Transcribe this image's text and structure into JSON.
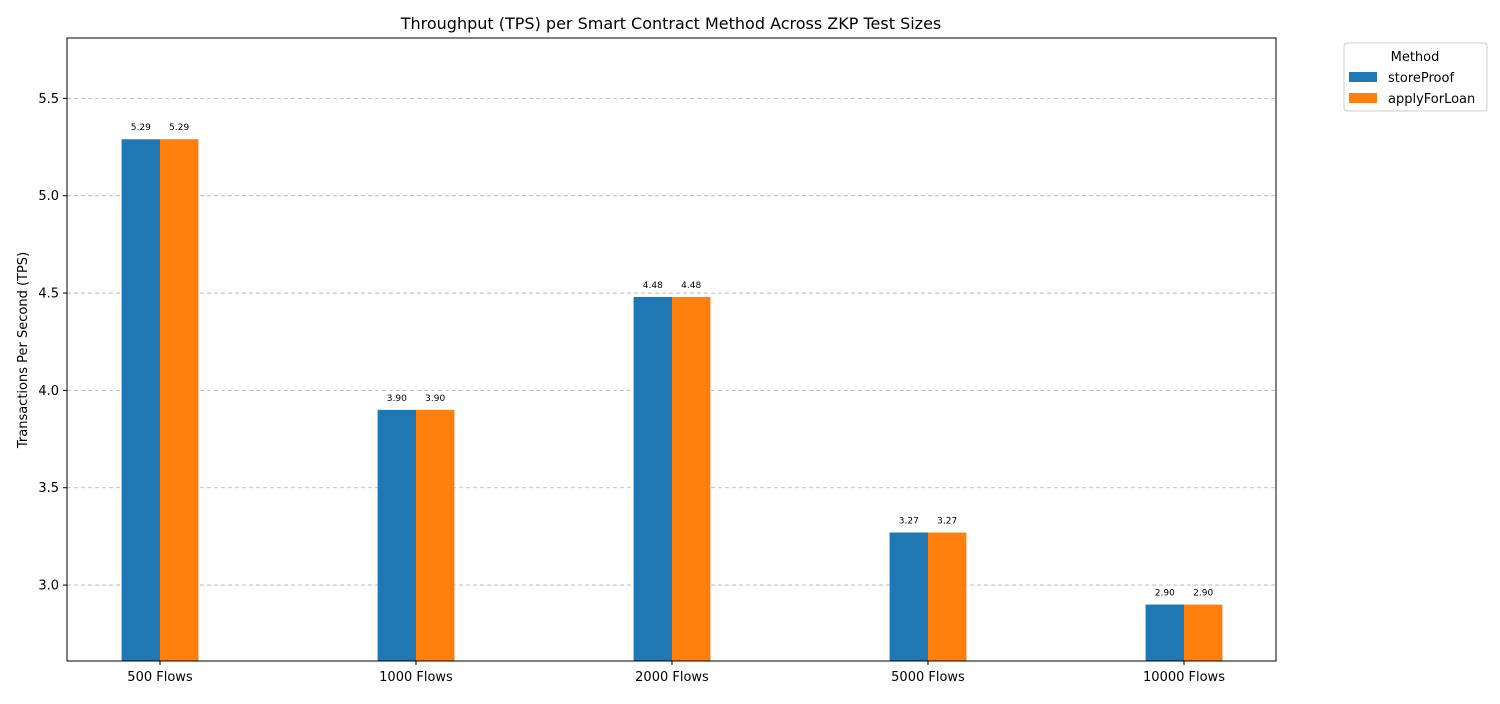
{
  "chart_data": {
    "type": "bar",
    "title": "Throughput (TPS) per Smart Contract Method Across ZKP Test Sizes",
    "xlabel": "",
    "ylabel": "Transactions Per Second (TPS)",
    "categories": [
      "500 Flows",
      "1000 Flows",
      "2000 Flows",
      "5000 Flows",
      "10000 Flows"
    ],
    "series": [
      {
        "name": "storeProof",
        "color": "#1f77b4",
        "values": [
          5.29,
          3.9,
          4.48,
          3.27,
          2.9
        ]
      },
      {
        "name": "applyForLoan",
        "color": "#ff7f0e",
        "values": [
          5.29,
          3.9,
          4.48,
          3.27,
          2.9
        ]
      }
    ],
    "data_labels": [
      [
        "5.29",
        "3.90",
        "4.48",
        "3.27",
        "2.90"
      ],
      [
        "5.29",
        "3.90",
        "4.48",
        "3.27",
        "2.90"
      ]
    ],
    "ylim": [
      2.61,
      5.81
    ],
    "yticks": [
      3.0,
      3.5,
      4.0,
      4.5,
      5.0,
      5.5
    ],
    "ytick_labels": [
      "3.0",
      "3.5",
      "4.0",
      "4.5",
      "5.0",
      "5.5"
    ],
    "grid": {
      "axis": "y",
      "style": "dashed"
    },
    "legend": {
      "title": "Method",
      "placement": "outside-top-right"
    }
  }
}
